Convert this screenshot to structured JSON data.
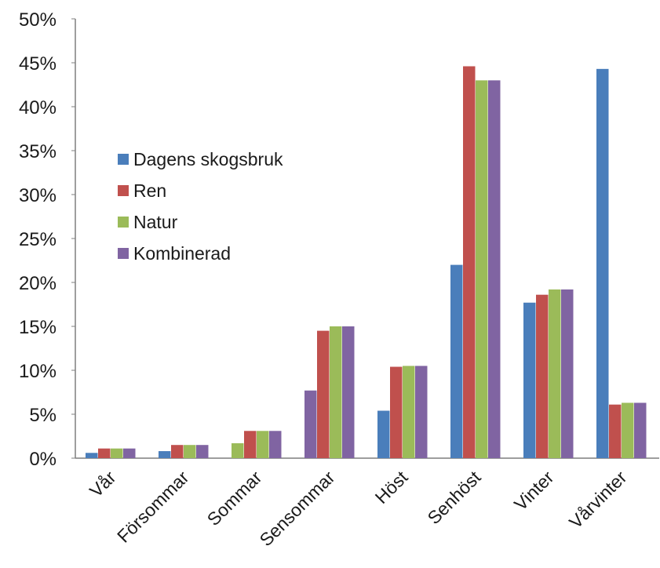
{
  "chart_data": {
    "type": "bar",
    "categories": [
      "Vår",
      "Försommar",
      "Sommar",
      "Sensommar",
      "Höst",
      "Senhöst",
      "Vinter",
      "Vårvinter"
    ],
    "series": [
      {
        "name": "Dagens skogsbruk",
        "color": "#4a7ebb",
        "values": [
          0.6,
          0.8,
          0,
          0,
          5.4,
          22.0,
          17.7,
          44.3
        ]
      },
      {
        "name": "Ren",
        "color": "#c0504d",
        "values": [
          1.1,
          1.5,
          3.1,
          14.5,
          10.4,
          44.6,
          18.6,
          6.1
        ]
      },
      {
        "name": "Natur",
        "color": "#9bbb59",
        "values": [
          1.1,
          1.5,
          3.1,
          15.0,
          10.5,
          43.0,
          19.2,
          6.3
        ]
      },
      {
        "name": "Kombinerad",
        "color": "#8064a2",
        "values": [
          1.1,
          1.5,
          3.1,
          15.0,
          10.5,
          43.0,
          19.2,
          6.3
        ]
      }
    ],
    "special_notes": "In Sommar the first visible bar is green and in Sensommar the first bar is purple, as drawn in the original.",
    "first_bar_color_override": {
      "Sommar": "#9bbb59",
      "Sensommar": "#8064a2"
    },
    "first_bar_value_override": {
      "Sommar": 1.7,
      "Sensommar": 7.7
    },
    "yticks": [
      "0%",
      "5%",
      "10%",
      "15%",
      "20%",
      "25%",
      "30%",
      "35%",
      "40%",
      "45%",
      "50%"
    ],
    "ylim": [
      0,
      50
    ],
    "grid": false,
    "legend_position": "upper-left",
    "title": "",
    "xlabel": "",
    "ylabel": ""
  }
}
